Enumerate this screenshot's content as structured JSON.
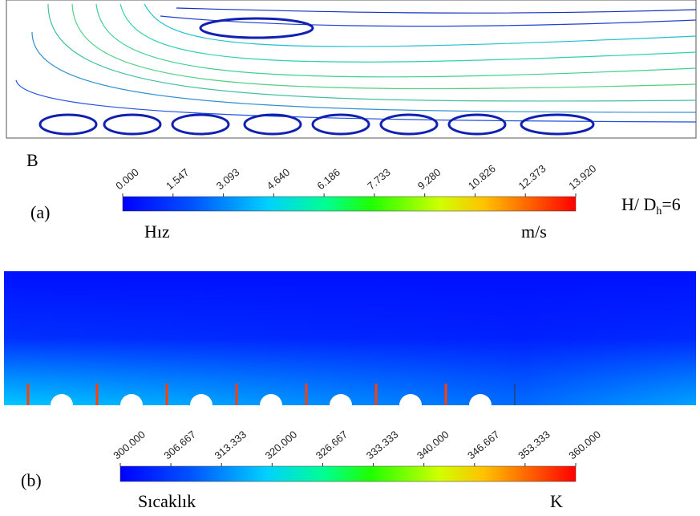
{
  "panels": [
    {
      "letter": "B",
      "label": "(a)",
      "ratio": {
        "base": "H/ D",
        "sub": "h",
        "rest": "=6"
      },
      "colorbar": {
        "ticks": [
          "0.000",
          "1.547",
          "3.093",
          "4.640",
          "6.186",
          "7.733",
          "9.280",
          "10.826",
          "12.373",
          "13.920"
        ],
        "quantity": "Hız",
        "unit": "m/s"
      }
    },
    {
      "label": "(b)",
      "colorbar": {
        "ticks": [
          "300.000",
          "306.667",
          "313.333",
          "320.000",
          "326.667",
          "333.333",
          "340.000",
          "346.667",
          "353.333",
          "360.000"
        ],
        "quantity": "Sıcaklık",
        "unit": "K"
      }
    }
  ]
}
